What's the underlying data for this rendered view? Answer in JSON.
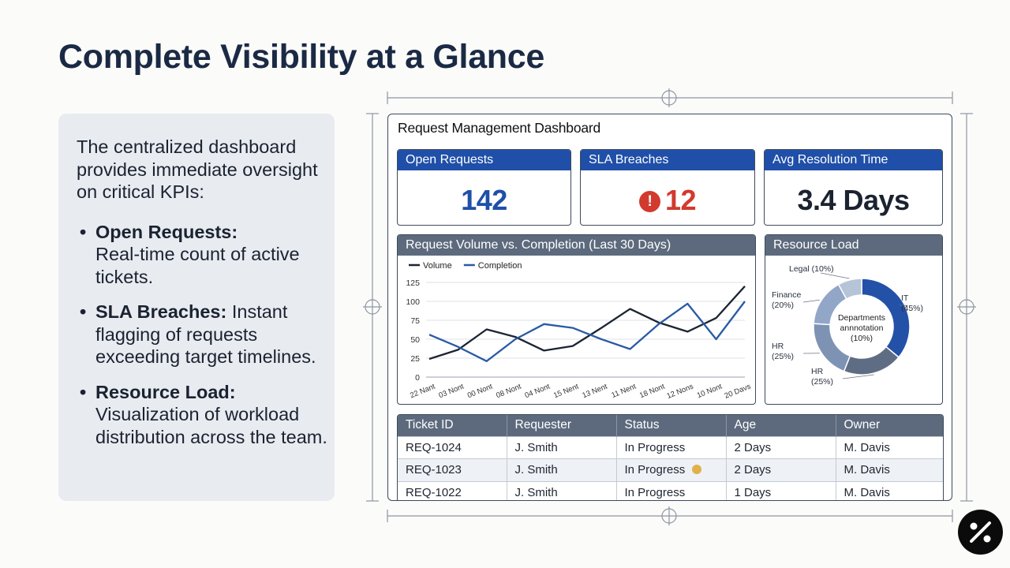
{
  "slide": {
    "title": "Complete Visibility at a Glance",
    "intro": "The centralized dashboard provides immediate oversight on critical KPIs:",
    "bullets": [
      {
        "term": "Open Requests:",
        "text": "Real-time count of active tickets."
      },
      {
        "term": "SLA Breaches:",
        "text": "Instant flagging of requests exceeding target timelines."
      },
      {
        "term": "Resource Load:",
        "text": "Visualization of workload distribution across the team."
      }
    ]
  },
  "dashboard": {
    "title": "Request Management Dashboard",
    "kpis": {
      "open": {
        "label": "Open Requests",
        "value": "142"
      },
      "sla": {
        "label": "SLA Breaches",
        "value": "12",
        "icon": "alert-icon"
      },
      "avg": {
        "label": "Avg Resolution Time",
        "value": "3.4 Days"
      }
    },
    "volume_chart": {
      "header": "Request Volume vs. Completion (Last 30 Days)"
    },
    "resource_chart": {
      "header": "Resource Load"
    },
    "table": {
      "columns": [
        "Ticket ID",
        "Requester",
        "Status",
        "Age",
        "Owner"
      ],
      "rows": [
        [
          "REQ-1024",
          "J. Smith",
          "In Progress",
          "2 Days",
          "M. Davis"
        ],
        [
          "REQ-1023",
          "J. Smith",
          "In Progress",
          "2 Days",
          "M. Davis"
        ],
        [
          "REQ-1022",
          "J. Smith",
          "In Progress",
          "1 Days",
          "M. Davis"
        ]
      ]
    }
  },
  "chart_data": [
    {
      "type": "line",
      "title": "Request Volume vs. Completion (Last 30 Days)",
      "categories": [
        "22 Nant",
        "03 Nont",
        "00 Nont",
        "08 Nont",
        "04 Nont",
        "15 Nent",
        "13 Nent",
        "11 Nent",
        "18 Nont",
        "12 Nons",
        "10 Nont",
        "20 Davs"
      ],
      "x": [
        0,
        1,
        2,
        3,
        4,
        5,
        6,
        7,
        8,
        9,
        10,
        11
      ],
      "series": [
        {
          "name": "Volume",
          "color": "#1b2433",
          "values": [
            24,
            36,
            63,
            53,
            35,
            41,
            65,
            90,
            72,
            60,
            78,
            120
          ]
        },
        {
          "name": "Completion",
          "color": "#2a5ba4",
          "values": [
            56,
            40,
            21,
            50,
            70,
            65,
            50,
            37,
            70,
            97,
            50,
            100
          ]
        }
      ],
      "yticks": [
        0,
        25,
        50,
        75,
        100,
        125
      ],
      "ylim": [
        0,
        125
      ],
      "xlim": [
        0,
        11
      ],
      "xlabel": "",
      "ylabel": "",
      "grid": true,
      "legend": "top-left"
    },
    {
      "type": "pie",
      "title": "Resource Load",
      "center_label": "Departments annnotation (10%)",
      "slices": [
        {
          "label": "IT (45%)",
          "value": 45,
          "color": "#2451a8"
        },
        {
          "label": "HR (25%)",
          "value": 25,
          "color": "#5f6d84"
        },
        {
          "label": "HR (25%)",
          "value": 25,
          "color": "#7e93b4"
        },
        {
          "label": "Finance (20%)",
          "value": 20,
          "color": "#92a6c7"
        },
        {
          "label": "Legal (10%)",
          "value": 10,
          "color": "#b6c4d8"
        }
      ]
    }
  ]
}
